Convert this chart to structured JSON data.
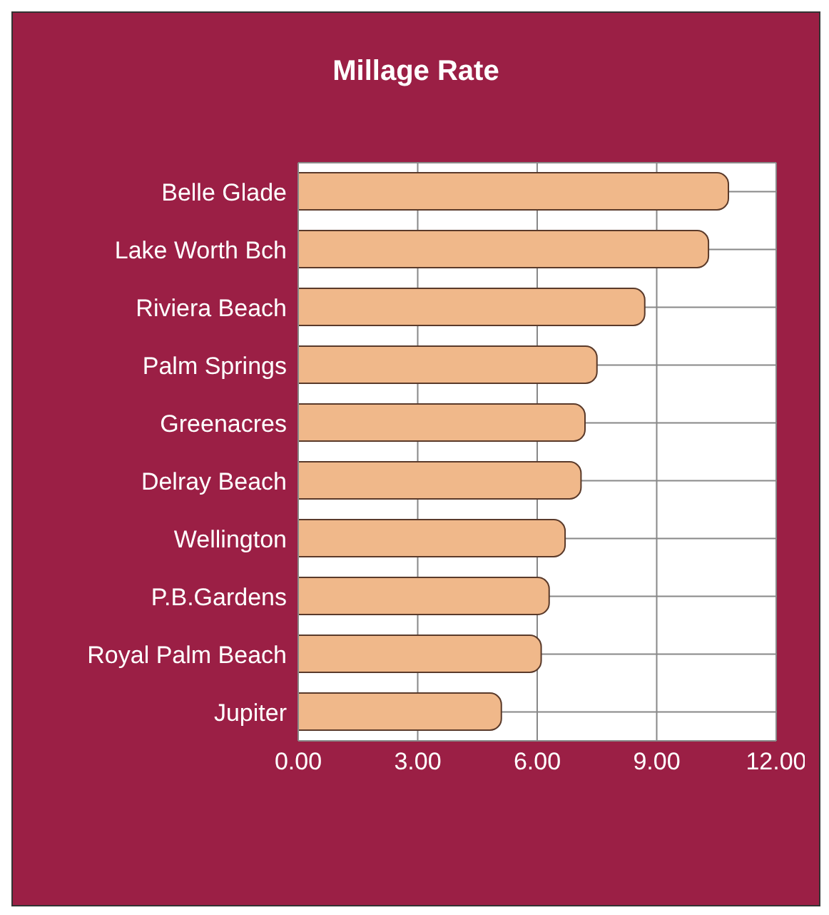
{
  "chart_data": {
    "type": "bar",
    "title": "Millage Rate",
    "orientation": "horizontal",
    "categories": [
      "Belle Glade",
      "Lake Worth Bch",
      "Riviera Beach",
      "Palm Springs",
      "Greenacres",
      "Delray Beach",
      "Wellington",
      "P.B.Gardens",
      "Royal Palm Beach",
      "Jupiter"
    ],
    "values": [
      10.8,
      10.3,
      8.7,
      7.5,
      7.2,
      7.1,
      6.7,
      6.3,
      6.1,
      5.1
    ],
    "color": "#f0b88a",
    "xlim": [
      0,
      12
    ],
    "xticks": [
      {
        "value": 0,
        "label": "0.00"
      },
      {
        "value": 3,
        "label": "3.00"
      },
      {
        "value": 6,
        "label": "6.00"
      },
      {
        "value": 9,
        "label": "9.00"
      },
      {
        "value": 12,
        "label": "12.00"
      }
    ],
    "grid": "x"
  }
}
